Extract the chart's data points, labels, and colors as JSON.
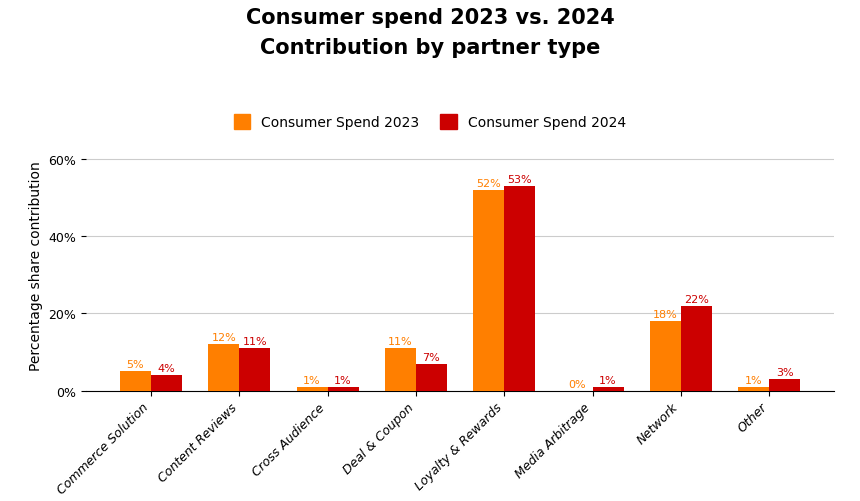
{
  "title_line1": "Consumer spend 2023 vs. 2024",
  "title_line2": "Contribution by partner type",
  "categories": [
    "Commerce Solution",
    "Content Reviews",
    "Cross Audience",
    "Deal & Coupon",
    "Loyalty & Rewards",
    "Media Arbitrage",
    "Network",
    "Other"
  ],
  "values_2023": [
    5,
    12,
    1,
    11,
    52,
    0,
    18,
    1
  ],
  "values_2024": [
    4,
    11,
    1,
    7,
    53,
    1,
    22,
    3
  ],
  "color_2023": "#FF7F00",
  "color_2024": "#CC0000",
  "label_2023": "Consumer Spend 2023",
  "label_2024": "Consumer Spend 2024",
  "ylabel": "Percentage share contribution",
  "ylim": [
    0,
    65
  ],
  "yticks": [
    0,
    20,
    40,
    60
  ],
  "ytick_labels": [
    "0%",
    "20%",
    "40%",
    "60%"
  ],
  "background_color": "#ffffff",
  "bar_width": 0.35,
  "title_fontsize": 15,
  "axis_label_fontsize": 10,
  "tick_fontsize": 9,
  "legend_fontsize": 10,
  "value_label_fontsize": 8
}
